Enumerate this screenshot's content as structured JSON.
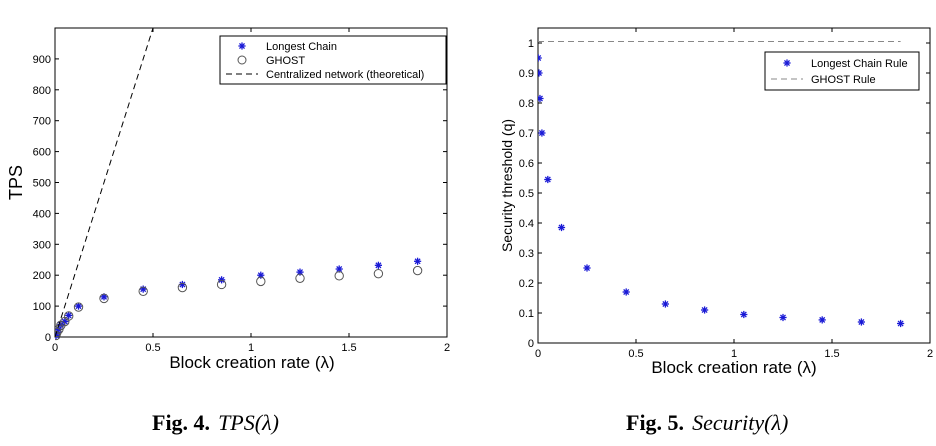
{
  "chart_data": [
    {
      "type": "scatter",
      "xlabel": "Block creation rate (λ)",
      "ylabel": "TPS",
      "xlim": [
        0,
        2
      ],
      "ylim": [
        0,
        1000
      ],
      "xticks": [
        "0",
        "0.5",
        "1",
        "1.5",
        "2"
      ],
      "yticks": [
        "0",
        "100",
        "200",
        "300",
        "400",
        "500",
        "600",
        "700",
        "800",
        "900"
      ],
      "legend_position": "top-right",
      "series": [
        {
          "name": "Longest Chain",
          "marker": "star",
          "color": "#1a1ad6",
          "x": [
            0.005,
            0.01,
            0.02,
            0.03,
            0.05,
            0.07,
            0.12,
            0.25,
            0.45,
            0.65,
            0.85,
            1.05,
            1.25,
            1.45,
            1.65,
            1.85
          ],
          "y": [
            5,
            15,
            25,
            40,
            50,
            70,
            100,
            130,
            155,
            170,
            185,
            200,
            210,
            220,
            232,
            245
          ]
        },
        {
          "name": "GHOST",
          "marker": "circle",
          "color": "#555555",
          "x": [
            0.005,
            0.01,
            0.02,
            0.03,
            0.05,
            0.07,
            0.12,
            0.25,
            0.45,
            0.65,
            0.85,
            1.05,
            1.25,
            1.45,
            1.65,
            1.85
          ],
          "y": [
            5,
            15,
            25,
            38,
            50,
            68,
            97,
            125,
            148,
            160,
            170,
            180,
            190,
            198,
            205,
            215
          ]
        },
        {
          "name": "Centralized network (theoretical)",
          "line": "dashed",
          "color": "#000000",
          "x": [
            0,
            0.5
          ],
          "y": [
            0,
            1000
          ]
        }
      ]
    },
    {
      "type": "scatter",
      "xlabel": "Block creation rate (λ)",
      "ylabel": "Security threshold (q)",
      "xlim": [
        0,
        2
      ],
      "ylim": [
        0,
        1.05
      ],
      "xticks": [
        "0",
        "0.5",
        "1",
        "1.5",
        "2"
      ],
      "yticks": [
        "0",
        "0.1",
        "0.2",
        "0.3",
        "0.4",
        "0.5",
        "0.6",
        "0.7",
        "0.8",
        "0.9",
        "1"
      ],
      "legend_position": "top-right",
      "series": [
        {
          "name": "Longest Chain Rule",
          "marker": "star",
          "color": "#1a1ad6",
          "x": [
            0.001,
            0.005,
            0.01,
            0.02,
            0.05,
            0.12,
            0.25,
            0.45,
            0.65,
            0.85,
            1.05,
            1.25,
            1.45,
            1.65,
            1.85
          ],
          "y": [
            0.95,
            0.9,
            0.815,
            0.7,
            0.545,
            0.385,
            0.25,
            0.17,
            0.13,
            0.11,
            0.095,
            0.085,
            0.077,
            0.07,
            0.065
          ]
        },
        {
          "name": "GHOST Rule",
          "line": "dashed",
          "color": "#888888",
          "x": [
            0,
            1.85
          ],
          "y": [
            1.005,
            1.005
          ]
        }
      ]
    }
  ],
  "captions": [
    {
      "label": "Fig. 4.",
      "text": "TPS(λ)"
    },
    {
      "label": "Fig. 5.",
      "text": "Security(λ)"
    }
  ]
}
